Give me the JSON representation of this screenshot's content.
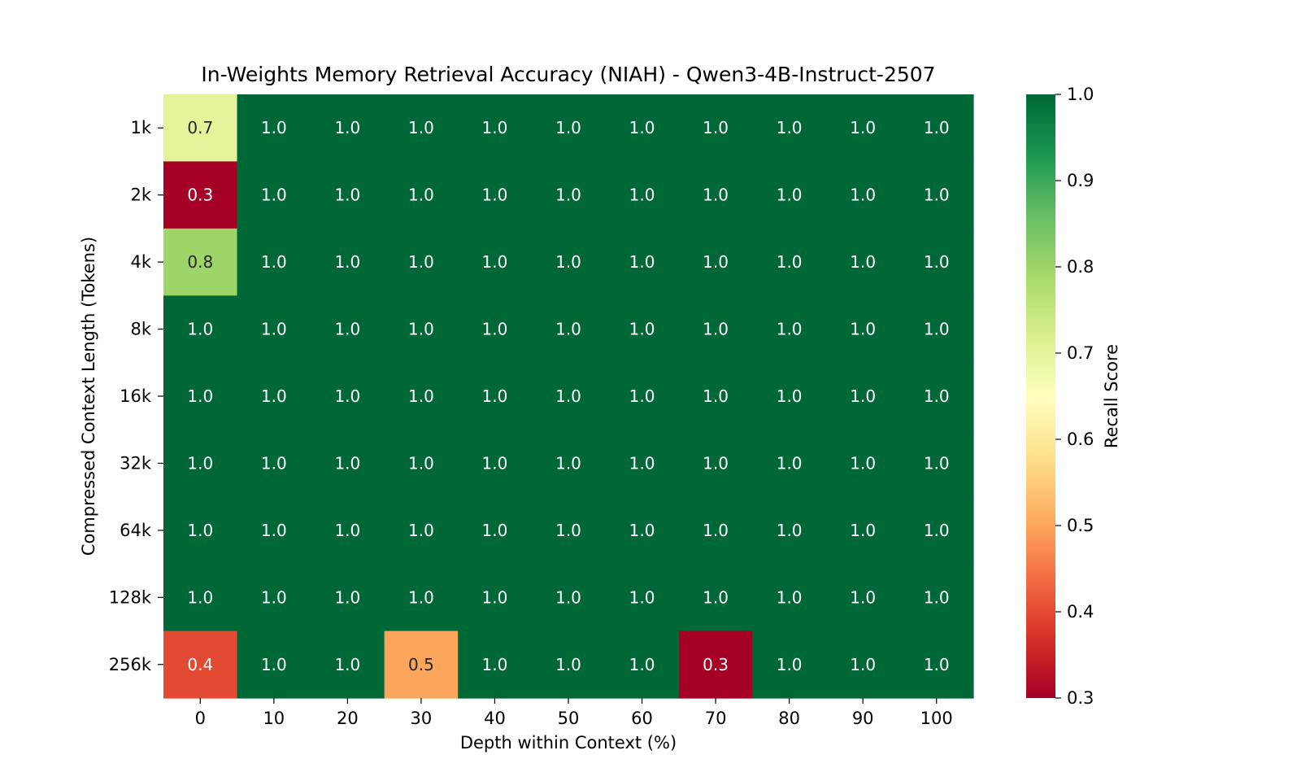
{
  "chart_data": {
    "type": "heatmap",
    "title": "In-Weights Memory Retrieval Accuracy (NIAH) - Qwen3-4B-Instruct-2507",
    "xlabel": "Depth within Context (%)",
    "ylabel": "Compressed Context Length (Tokens)",
    "x_categories": [
      "0",
      "10",
      "20",
      "30",
      "40",
      "50",
      "60",
      "70",
      "80",
      "90",
      "100"
    ],
    "y_categories": [
      "1k",
      "2k",
      "4k",
      "8k",
      "16k",
      "32k",
      "64k",
      "128k",
      "256k"
    ],
    "values": [
      [
        0.7,
        1.0,
        1.0,
        1.0,
        1.0,
        1.0,
        1.0,
        1.0,
        1.0,
        1.0,
        1.0
      ],
      [
        0.3,
        1.0,
        1.0,
        1.0,
        1.0,
        1.0,
        1.0,
        1.0,
        1.0,
        1.0,
        1.0
      ],
      [
        0.8,
        1.0,
        1.0,
        1.0,
        1.0,
        1.0,
        1.0,
        1.0,
        1.0,
        1.0,
        1.0
      ],
      [
        1.0,
        1.0,
        1.0,
        1.0,
        1.0,
        1.0,
        1.0,
        1.0,
        1.0,
        1.0,
        1.0
      ],
      [
        1.0,
        1.0,
        1.0,
        1.0,
        1.0,
        1.0,
        1.0,
        1.0,
        1.0,
        1.0,
        1.0
      ],
      [
        1.0,
        1.0,
        1.0,
        1.0,
        1.0,
        1.0,
        1.0,
        1.0,
        1.0,
        1.0,
        1.0
      ],
      [
        1.0,
        1.0,
        1.0,
        1.0,
        1.0,
        1.0,
        1.0,
        1.0,
        1.0,
        1.0,
        1.0
      ],
      [
        1.0,
        1.0,
        1.0,
        1.0,
        1.0,
        1.0,
        1.0,
        1.0,
        1.0,
        1.0,
        1.0
      ],
      [
        0.4,
        1.0,
        1.0,
        0.5,
        1.0,
        1.0,
        1.0,
        0.3,
        1.0,
        1.0,
        1.0
      ]
    ],
    "colorbar": {
      "label": "Recall Score",
      "range": [
        0.3,
        1.0
      ],
      "ticks": [
        "0.3",
        "0.4",
        "0.5",
        "0.6",
        "0.7",
        "0.8",
        "0.9",
        "1.0"
      ],
      "colormap": "RdYlGn"
    },
    "grid": false
  }
}
